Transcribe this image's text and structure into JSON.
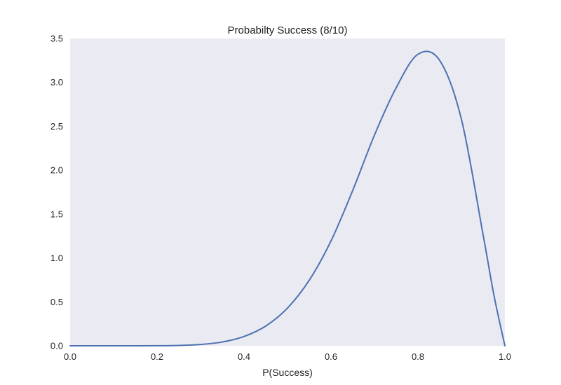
{
  "chart_data": {
    "type": "line",
    "title": "Probabilty Success (8/10)",
    "xlabel": "P(Success)",
    "ylabel": "",
    "xlim": [
      0.0,
      1.0
    ],
    "ylim": [
      0.0,
      3.5
    ],
    "xticks": [
      "0.0",
      "0.2",
      "0.4",
      "0.6",
      "0.8",
      "1.0"
    ],
    "yticks": [
      "0.0",
      "0.5",
      "1.0",
      "1.5",
      "2.0",
      "2.5",
      "3.0",
      "3.5"
    ],
    "grid": false,
    "background_color": "#eaeaf2",
    "series": [
      {
        "color": "#4c72b0",
        "x": [
          0.0,
          0.05,
          0.1,
          0.15,
          0.2,
          0.25,
          0.3,
          0.35,
          0.4,
          0.45,
          0.5,
          0.55,
          0.6,
          0.65,
          0.7,
          0.75,
          0.8,
          0.85,
          0.9,
          0.95,
          0.975,
          1.0
        ],
        "y": [
          0.0,
          0.0,
          0.0,
          0.0001,
          0.0008,
          0.0043,
          0.015,
          0.0434,
          0.1061,
          0.2253,
          0.4297,
          0.7466,
          1.194,
          1.77,
          2.4,
          2.94,
          3.32,
          3.25,
          2.58,
          1.26,
          0.571,
          0.0
        ]
      }
    ]
  }
}
